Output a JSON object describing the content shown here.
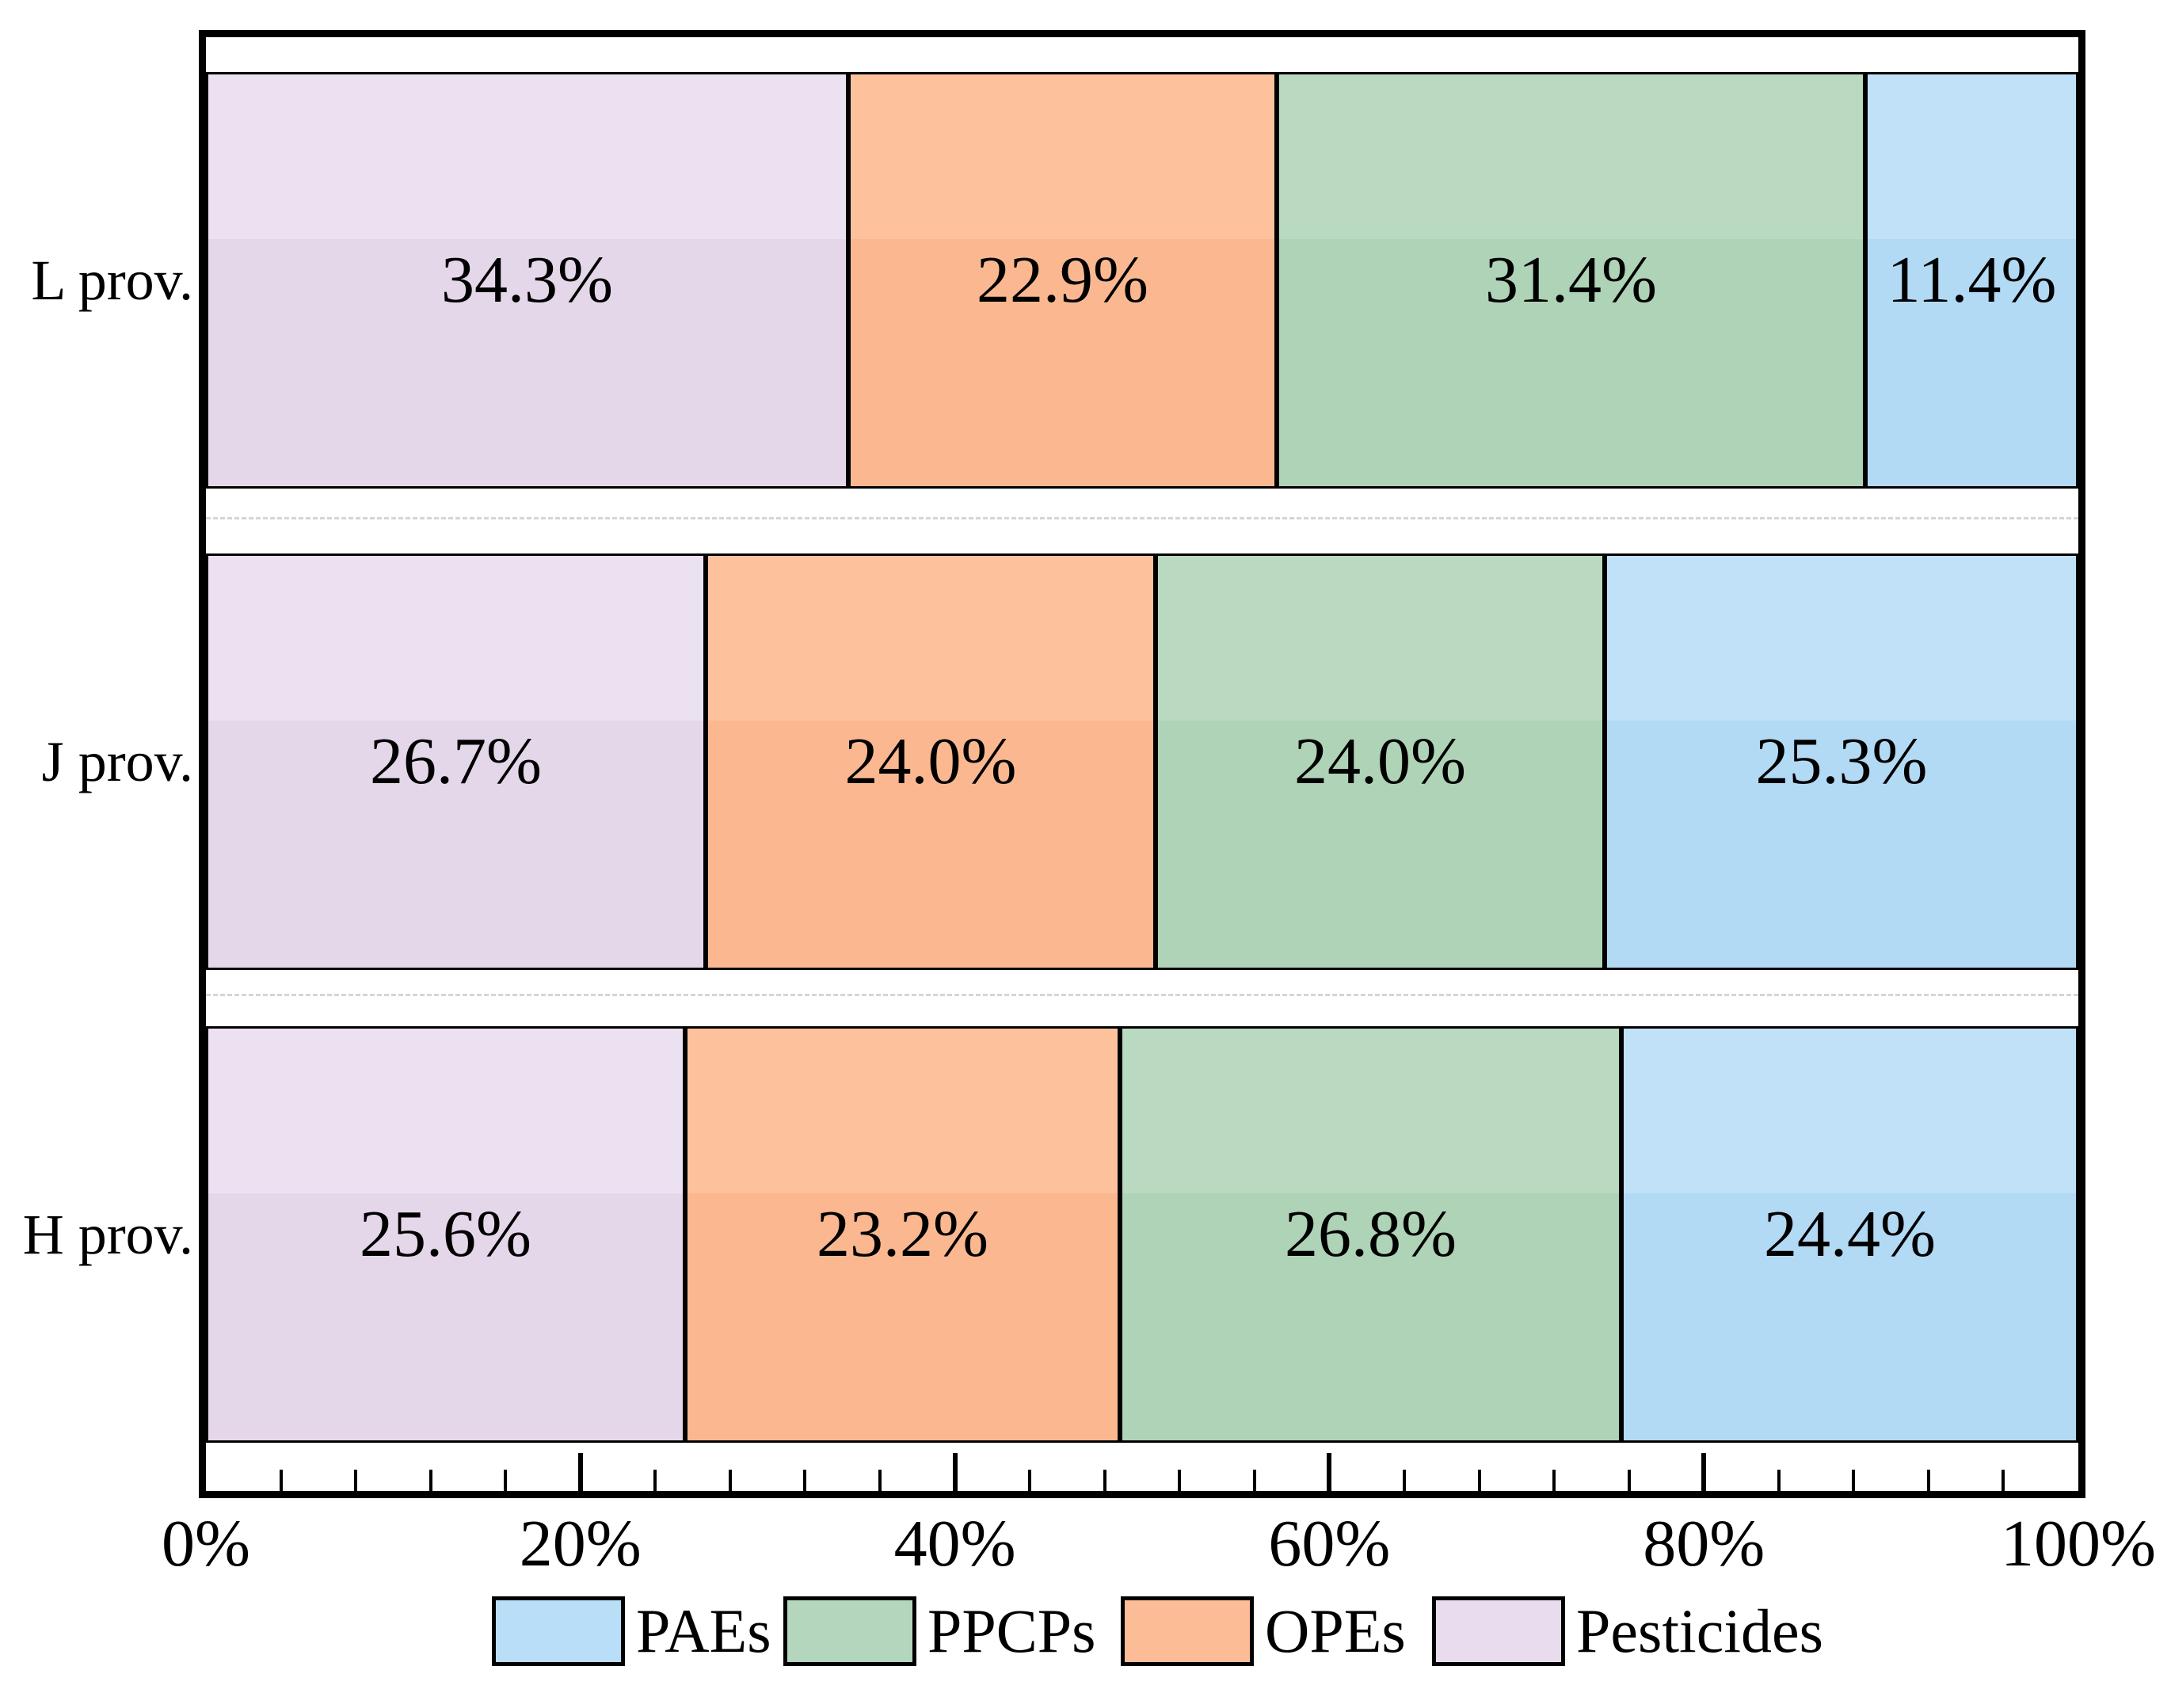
{
  "chart_data": {
    "type": "bar",
    "orientation": "horizontal-stacked",
    "title": "",
    "xlabel": "",
    "ylabel": "",
    "categories": [
      "L prov.",
      "J prov.",
      "H prov."
    ],
    "series": [
      {
        "name": "Pesticides",
        "values": [
          34.3,
          26.7,
          25.6
        ]
      },
      {
        "name": "OPEs",
        "values": [
          22.9,
          24.0,
          23.2
        ]
      },
      {
        "name": "PPCPs",
        "values": [
          31.4,
          24.0,
          26.8
        ]
      },
      {
        "name": "PAEs",
        "values": [
          11.4,
          25.3,
          24.4
        ]
      }
    ],
    "segment_labels": [
      [
        "34.3%",
        "22.9%",
        "31.4%",
        "11.4%"
      ],
      [
        "26.7%",
        "24.0%",
        "24.0%",
        "25.3%"
      ],
      [
        "25.6%",
        "23.2%",
        "26.8%",
        "24.4%"
      ]
    ],
    "x_ticks": [
      "0%",
      "20%",
      "40%",
      "60%",
      "80%",
      "100%"
    ],
    "x_tick_percents": [
      0,
      20,
      40,
      60,
      80,
      100
    ],
    "xlim": [
      0,
      100
    ],
    "minor_tick_step_percent": 4,
    "grid": "dashed light-gray separators between category rows",
    "legend_position": "bottom",
    "legend": [
      {
        "label": "PAEs",
        "color": "#b9def7"
      },
      {
        "label": "PPCPs",
        "color": "#b4d6bc"
      },
      {
        "label": "OPEs",
        "color": "#fcbd96"
      },
      {
        "label": "Pesticides",
        "color": "#e8dcee"
      }
    ],
    "series_colors": {
      "Pesticides": {
        "top": "#ece1f0",
        "bottom": "#e5d7ea"
      },
      "OPEs": {
        "top": "#fdc29c",
        "bottom": "#fbb890"
      },
      "PPCPs": {
        "top": "#b9dac0",
        "bottom": "#aed3b7"
      },
      "PAEs": {
        "top": "#c0e1f8",
        "bottom": "#b2daf5"
      }
    },
    "frame_color": "#000000",
    "background_color": "#ffffff"
  }
}
